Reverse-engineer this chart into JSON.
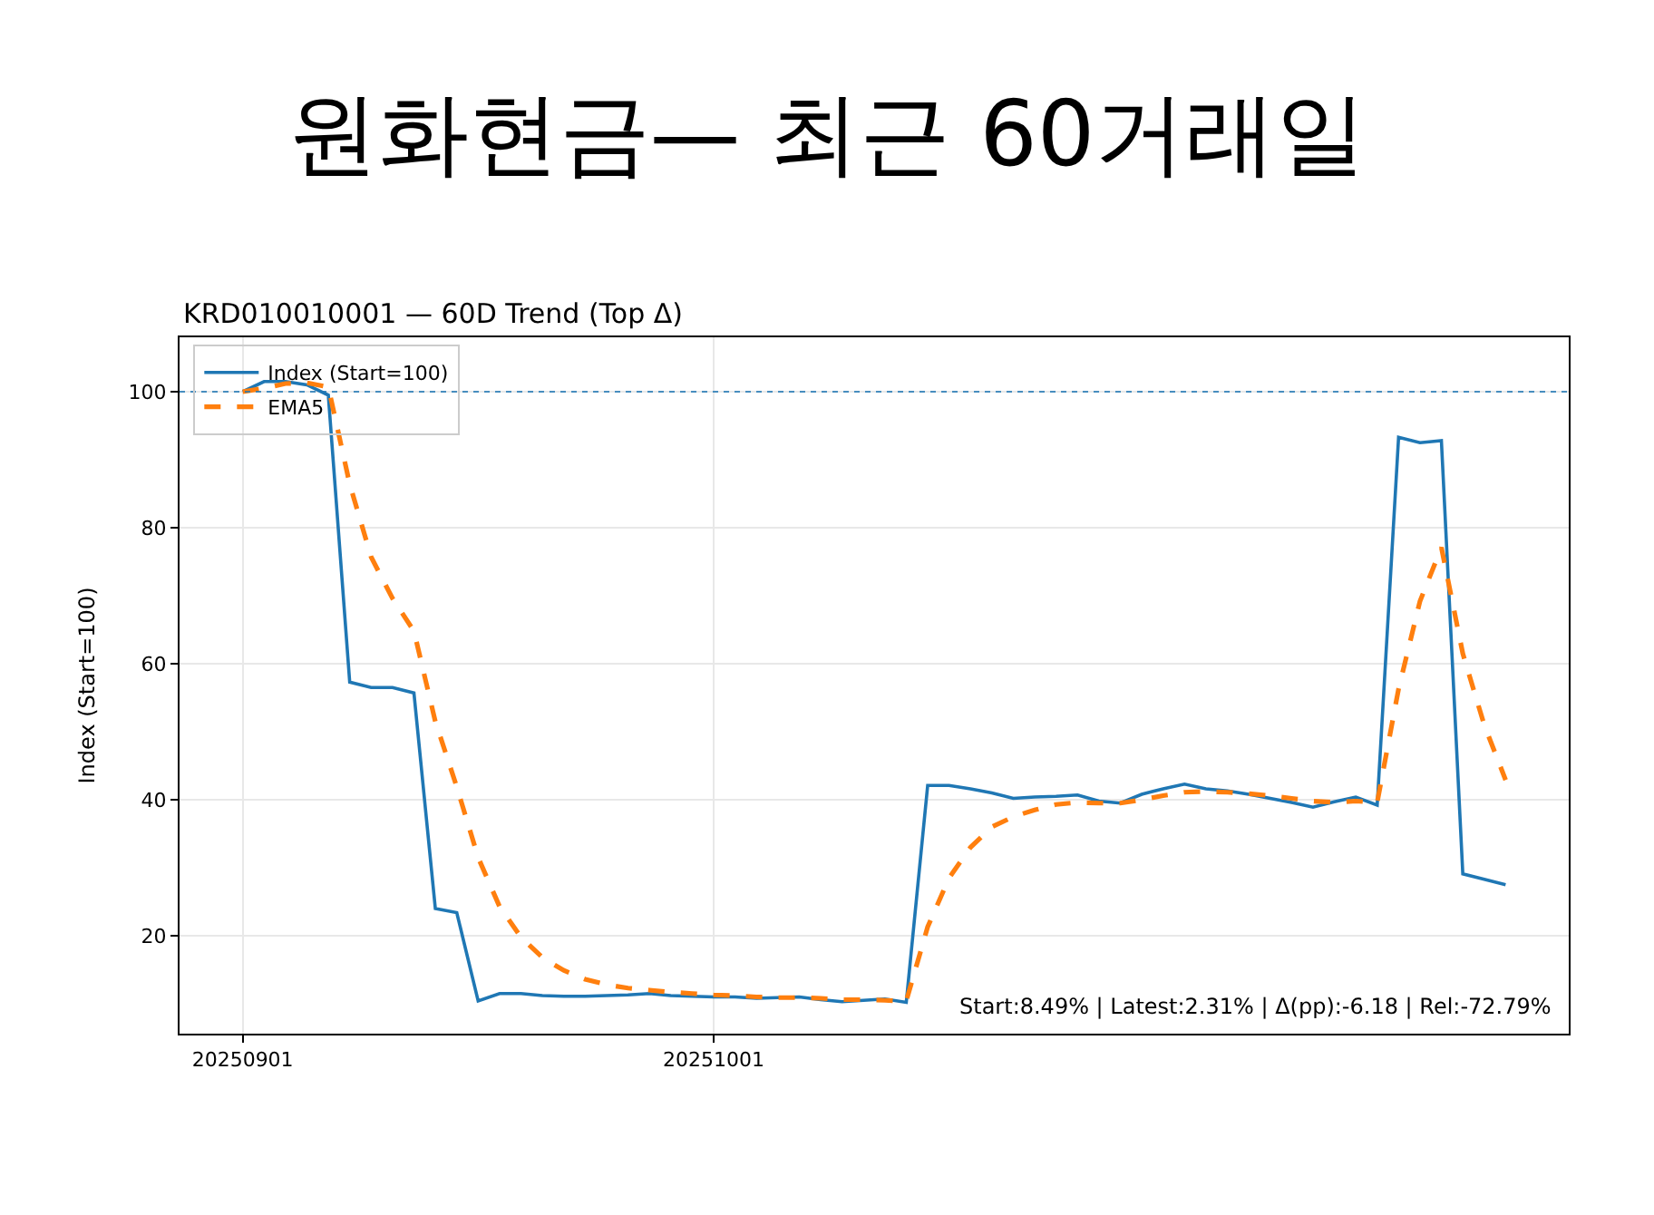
{
  "chart_data": {
    "type": "line",
    "title": "원화현금— 최근 60거래일",
    "subtitle": "KRD010010001 — 60D Trend (Top Δ)",
    "ylabel": "Index (Start=100)",
    "categories": [
      "20250901",
      null,
      null,
      null,
      null,
      null,
      null,
      null,
      null,
      null,
      null,
      null,
      null,
      null,
      null,
      null,
      null,
      null,
      null,
      null,
      null,
      null,
      "20251001",
      null,
      null,
      null,
      null,
      null,
      null,
      null,
      null,
      null,
      null,
      null,
      null,
      null,
      null,
      null,
      null,
      null,
      null,
      null,
      null,
      null,
      null,
      null,
      null,
      null,
      null,
      null,
      null,
      null,
      null,
      null,
      null,
      null,
      null,
      null,
      null,
      null
    ],
    "series": [
      {
        "name": "Index (Start=100)",
        "color": "#1f77b4",
        "line_style": "solid",
        "values": [
          100,
          101.5,
          101.5,
          101,
          99.5,
          57.3,
          56.5,
          56.5,
          55.7,
          24,
          23.4,
          10.4,
          11.5,
          11.5,
          11.2,
          11.1,
          11.1,
          11.2,
          11.3,
          11.5,
          11.2,
          11.1,
          11.0,
          11.0,
          10.8,
          10.9,
          11.0,
          10.6,
          10.3,
          10.5,
          10.7,
          10.2,
          42.1,
          42.1,
          41.6,
          41.0,
          40.2,
          40.4,
          40.5,
          40.7,
          39.8,
          39.5,
          40.8,
          41.6,
          42.3,
          41.6,
          41.3,
          40.8,
          40.2,
          39.6,
          38.9,
          39.7,
          40.4,
          39.2,
          93.3,
          92.5,
          92.8,
          29.1,
          28.3,
          27.5
        ]
      },
      {
        "name": "EMA5",
        "color": "#ff7f0e",
        "line_style": "dashed",
        "values": [
          100,
          100.5,
          101.2,
          101.3,
          100.7,
          86.4,
          75.7,
          69.6,
          64.8,
          51.5,
          41.9,
          31.5,
          24.3,
          19.8,
          16.8,
          14.9,
          13.6,
          12.8,
          12.3,
          12.0,
          11.7,
          11.5,
          11.3,
          11.2,
          11.0,
          10.9,
          10.9,
          10.8,
          10.6,
          10.6,
          10.5,
          10.4,
          21.3,
          28.5,
          33,
          36,
          37.5,
          38.5,
          39.3,
          39.6,
          39.5,
          39.5,
          40.0,
          40.6,
          41.1,
          41.2,
          41.1,
          40.9,
          40.6,
          40.2,
          39.8,
          39.6,
          39.8,
          39.6,
          56.3,
          69.2,
          77.1,
          61.5,
          51,
          42.9
        ]
      }
    ],
    "ylim": [
      5.6,
      108
    ],
    "yticks": [
      20,
      40,
      60,
      80,
      100
    ],
    "ref_lines": [
      {
        "axis": "y",
        "value": 100,
        "color": "#1f77b4",
        "line_style": "dotted"
      }
    ],
    "annotations": [
      {
        "text": "Start:8.49% | Latest:2.31% | Δ(pp):-6.18 | Rel:-72.79%"
      }
    ],
    "grid": true,
    "legend": "top left",
    "marker": "none"
  }
}
